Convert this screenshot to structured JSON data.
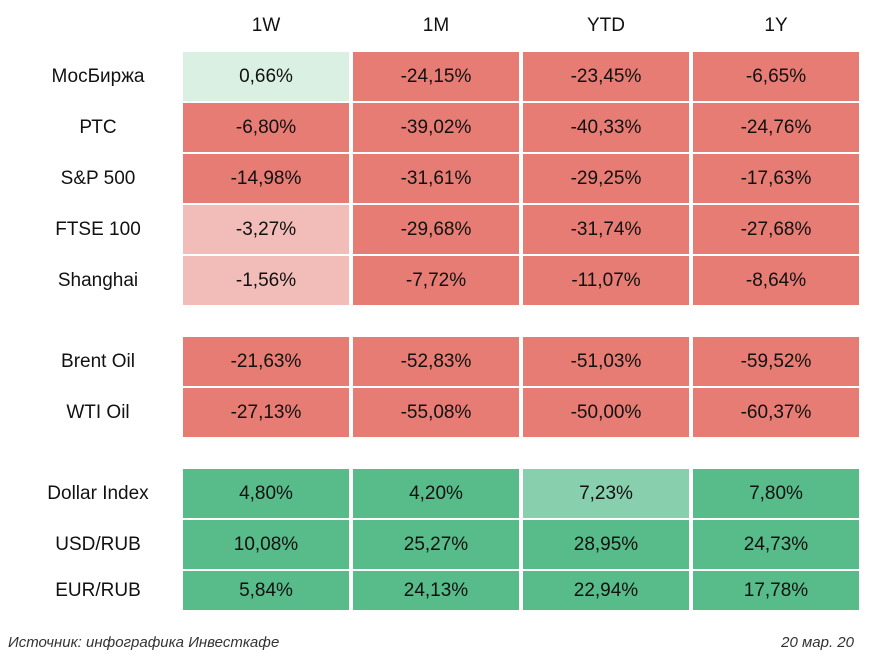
{
  "chart_data": {
    "type": "table",
    "columns": [
      "1W",
      "1M",
      "YTD",
      "1Y"
    ],
    "groups": [
      {
        "rows": [
          {
            "label": "МосБиржа",
            "values": [
              "0,66%",
              "-24,15%",
              "-23,45%",
              "-6,65%"
            ]
          },
          {
            "label": "РТС",
            "values": [
              "-6,80%",
              "-39,02%",
              "-40,33%",
              "-24,76%"
            ]
          },
          {
            "label": "S&P 500",
            "values": [
              "-14,98%",
              "-31,61%",
              "-29,25%",
              "-17,63%"
            ]
          },
          {
            "label": "FTSE 100",
            "values": [
              "-3,27%",
              "-29,68%",
              "-31,74%",
              "-27,68%"
            ]
          },
          {
            "label": "Shanghai",
            "values": [
              "-1,56%",
              "-7,72%",
              "-11,07%",
              "-8,64%"
            ]
          }
        ]
      },
      {
        "rows": [
          {
            "label": "Brent Oil",
            "values": [
              "-21,63%",
              "-52,83%",
              "-51,03%",
              "-59,52%"
            ]
          },
          {
            "label": "WTI Oil",
            "values": [
              "-27,13%",
              "-55,08%",
              "-50,00%",
              "-60,37%"
            ]
          }
        ]
      },
      {
        "rows": [
          {
            "label": "Dollar Index",
            "values": [
              "4,80%",
              "4,20%",
              "7,23%",
              "7,80%"
            ]
          },
          {
            "label": "USD/RUB",
            "values": [
              "10,08%",
              "25,27%",
              "28,95%",
              "24,73%"
            ]
          },
          {
            "label": "EUR/RUB",
            "values": [
              "5,84%",
              "24,13%",
              "22,94%",
              "17,78%"
            ]
          }
        ]
      }
    ],
    "colors": {
      "strong_negative": "#e67c73",
      "weak_negative": "#f2bcb8",
      "weak_positive": "#d9f0e3",
      "mid_positive": "#88cfae",
      "strong_positive": "#57bb8a"
    }
  },
  "footer": {
    "source": "Источник: инфографика Инвесткафе",
    "date": "20 мар. 20"
  }
}
